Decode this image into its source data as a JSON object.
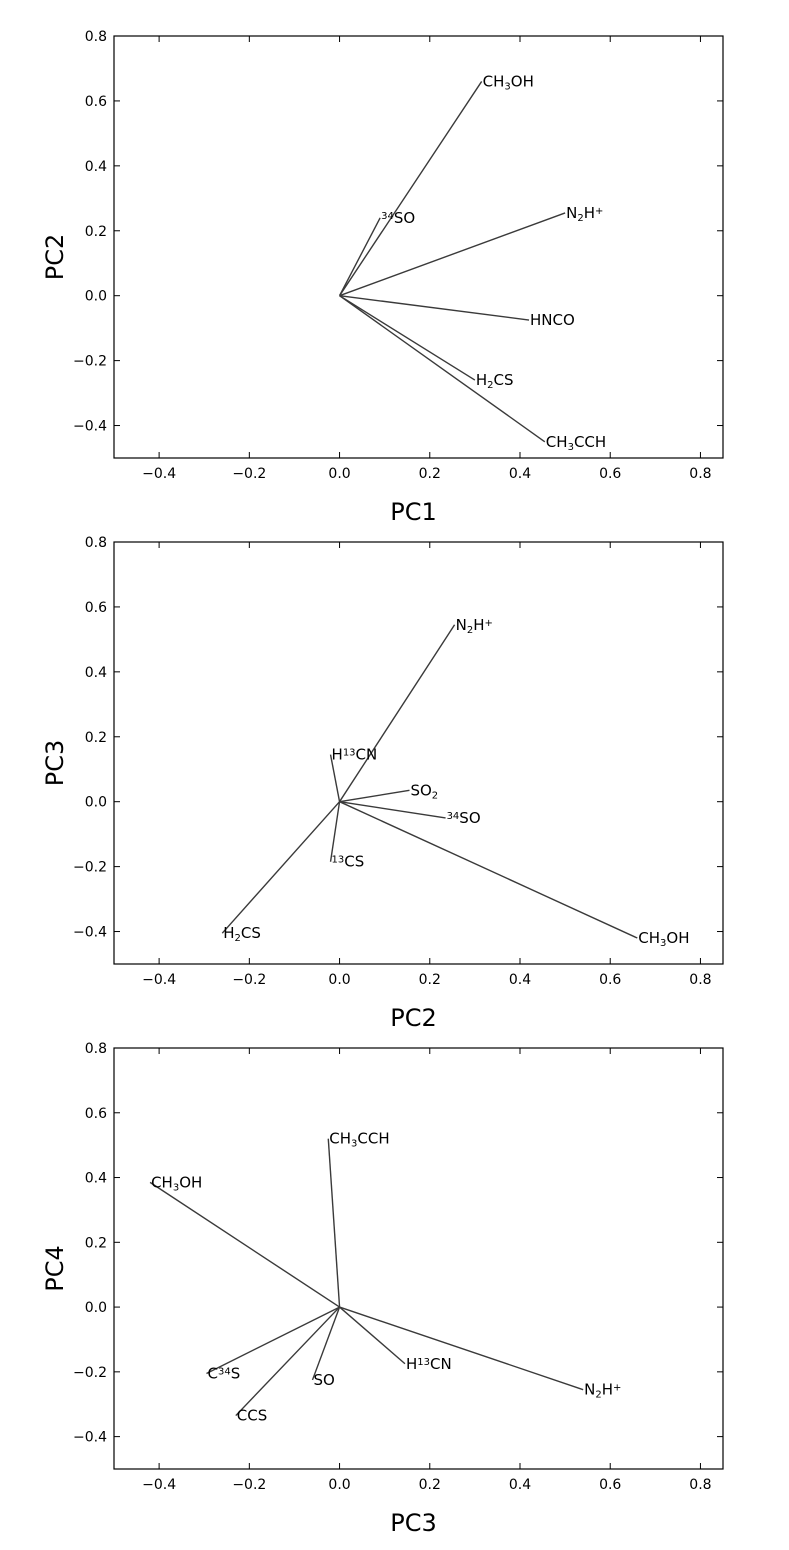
{
  "chart_data": [
    {
      "type": "line",
      "xlabel": "PC1",
      "ylabel": "PC2",
      "xlim": [
        -0.5,
        0.85
      ],
      "ylim": [
        -0.5,
        0.8
      ],
      "xticks": [
        "−0.4",
        "−0.2",
        "0.0",
        "0.2",
        "0.4",
        "0.6",
        "0.8"
      ],
      "yticks": [
        "−0.4",
        "−0.2",
        "0.0",
        "0.2",
        "0.4",
        "0.6",
        "0.8"
      ],
      "xtick_values": [
        -0.4,
        -0.2,
        0.0,
        0.2,
        0.4,
        0.6,
        0.8
      ],
      "ytick_values": [
        -0.4,
        -0.2,
        0.0,
        0.2,
        0.4,
        0.6,
        0.8
      ],
      "vectors": [
        {
          "label": "CH3OH",
          "parts": [
            [
              "CH",
              "n"
            ],
            [
              "3",
              "sub"
            ],
            [
              "OH",
              "n"
            ]
          ],
          "x": 0.315,
          "y": 0.66
        },
        {
          "label": "34SO",
          "parts": [
            [
              "34",
              "sup"
            ],
            [
              "SO",
              "n"
            ]
          ],
          "x": 0.09,
          "y": 0.24
        },
        {
          "label": "N2H+",
          "parts": [
            [
              "N",
              "n"
            ],
            [
              "2",
              "sub"
            ],
            [
              "H",
              "n"
            ],
            [
              "+",
              "sup"
            ]
          ],
          "x": 0.5,
          "y": 0.255
        },
        {
          "label": "HNCO",
          "parts": [
            [
              "HNCO",
              "n"
            ]
          ],
          "x": 0.42,
          "y": -0.075
        },
        {
          "label": "H2CS",
          "parts": [
            [
              "H",
              "n"
            ],
            [
              "2",
              "sub"
            ],
            [
              "CS",
              "n"
            ]
          ],
          "x": 0.3,
          "y": -0.26
        },
        {
          "label": "CH3CCH",
          "parts": [
            [
              "CH",
              "n"
            ],
            [
              "3",
              "sub"
            ],
            [
              "CCH",
              "n"
            ]
          ],
          "x": 0.455,
          "y": -0.45
        }
      ]
    },
    {
      "type": "line",
      "xlabel": "PC2",
      "ylabel": "PC3",
      "xlim": [
        -0.5,
        0.85
      ],
      "ylim": [
        -0.5,
        0.8
      ],
      "xticks": [
        "−0.4",
        "−0.2",
        "0.0",
        "0.2",
        "0.4",
        "0.6",
        "0.8"
      ],
      "yticks": [
        "−0.4",
        "−0.2",
        "0.0",
        "0.2",
        "0.4",
        "0.6",
        "0.8"
      ],
      "xtick_values": [
        -0.4,
        -0.2,
        0.0,
        0.2,
        0.4,
        0.6,
        0.8
      ],
      "ytick_values": [
        -0.4,
        -0.2,
        0.0,
        0.2,
        0.4,
        0.6,
        0.8
      ],
      "vectors": [
        {
          "label": "N2H+",
          "parts": [
            [
              "N",
              "n"
            ],
            [
              "2",
              "sub"
            ],
            [
              "H",
              "n"
            ],
            [
              "+",
              "sup"
            ]
          ],
          "x": 0.255,
          "y": 0.545
        },
        {
          "label": "H13CN",
          "parts": [
            [
              "H",
              "n"
            ],
            [
              "13",
              "sup"
            ],
            [
              "CN",
              "n"
            ]
          ],
          "x": -0.02,
          "y": 0.145
        },
        {
          "label": "SO2",
          "parts": [
            [
              "SO",
              "n"
            ],
            [
              "2",
              "sub"
            ]
          ],
          "x": 0.155,
          "y": 0.035
        },
        {
          "label": "34SO",
          "parts": [
            [
              "34",
              "sup"
            ],
            [
              "SO",
              "n"
            ]
          ],
          "x": 0.235,
          "y": -0.05
        },
        {
          "label": "13CS",
          "parts": [
            [
              "13",
              "sup"
            ],
            [
              "CS",
              "n"
            ]
          ],
          "x": -0.02,
          "y": -0.185
        },
        {
          "label": "H2CS",
          "parts": [
            [
              "H",
              "n"
            ],
            [
              "2",
              "sub"
            ],
            [
              "CS",
              "n"
            ]
          ],
          "x": -0.26,
          "y": -0.405
        },
        {
          "label": "CH3OH",
          "parts": [
            [
              "CH",
              "n"
            ],
            [
              "3",
              "sub"
            ],
            [
              "OH",
              "n"
            ]
          ],
          "x": 0.66,
          "y": -0.42
        }
      ]
    },
    {
      "type": "line",
      "xlabel": "PC3",
      "ylabel": "PC4",
      "xlim": [
        -0.5,
        0.85
      ],
      "ylim": [
        -0.5,
        0.8
      ],
      "xticks": [
        "−0.4",
        "−0.2",
        "0.0",
        "0.2",
        "0.4",
        "0.6",
        "0.8"
      ],
      "yticks": [
        "−0.4",
        "−0.2",
        "0.0",
        "0.2",
        "0.4",
        "0.6",
        "0.8"
      ],
      "xtick_values": [
        -0.4,
        -0.2,
        0.0,
        0.2,
        0.4,
        0.6,
        0.8
      ],
      "ytick_values": [
        -0.4,
        -0.2,
        0.0,
        0.2,
        0.4,
        0.6,
        0.8
      ],
      "vectors": [
        {
          "label": "CH3CCH",
          "parts": [
            [
              "CH",
              "n"
            ],
            [
              "3",
              "sub"
            ],
            [
              "CCH",
              "n"
            ]
          ],
          "x": -0.025,
          "y": 0.52
        },
        {
          "label": "CH3OH",
          "parts": [
            [
              "CH",
              "n"
            ],
            [
              "3",
              "sub"
            ],
            [
              "OH",
              "n"
            ]
          ],
          "x": -0.42,
          "y": 0.385
        },
        {
          "label": "C34S",
          "parts": [
            [
              "C",
              "n"
            ],
            [
              "34",
              "sup"
            ],
            [
              "S",
              "n"
            ]
          ],
          "x": -0.295,
          "y": -0.205
        },
        {
          "label": "SO",
          "parts": [
            [
              "SO",
              "n"
            ]
          ],
          "x": -0.06,
          "y": -0.225
        },
        {
          "label": "CCS",
          "parts": [
            [
              "CCS",
              "n"
            ]
          ],
          "x": -0.23,
          "y": -0.335
        },
        {
          "label": "H13CN",
          "parts": [
            [
              "H",
              "n"
            ],
            [
              "13",
              "sup"
            ],
            [
              "CN",
              "n"
            ]
          ],
          "x": 0.145,
          "y": -0.175
        },
        {
          "label": "N2H+",
          "parts": [
            [
              "N",
              "n"
            ],
            [
              "2",
              "sub"
            ],
            [
              "H",
              "n"
            ],
            [
              "+",
              "sup"
            ]
          ],
          "x": 0.54,
          "y": -0.255
        }
      ]
    }
  ]
}
